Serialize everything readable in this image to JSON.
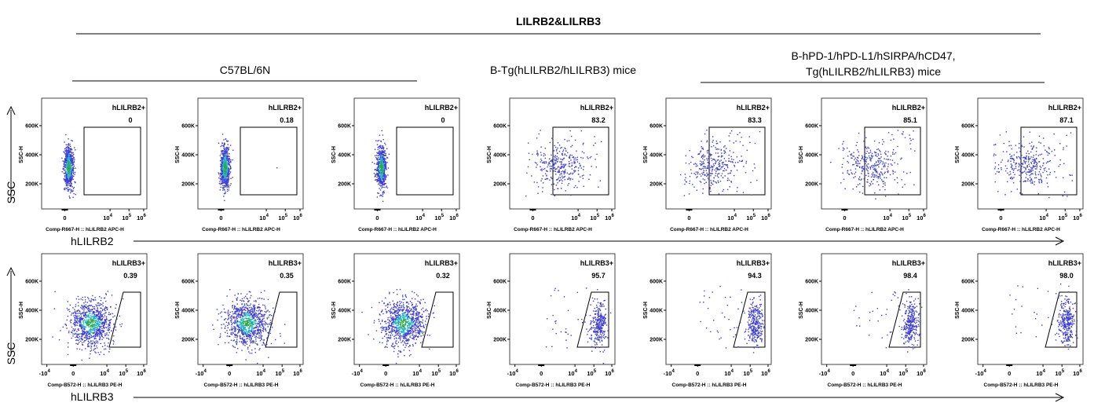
{
  "figure": {
    "title": "LILRB2&LILRB3",
    "groups": [
      {
        "label_lines": [
          "C57BL/6N"
        ]
      },
      {
        "label_lines": [
          "B-Tg(hLILRB2/hLILRB3) mice"
        ]
      },
      {
        "label_lines": [
          "B-hPD-1/hPD-L1/hSIRPA/hCD47,",
          "Tg(hLILRB2/hLILRB3) mice"
        ]
      }
    ],
    "rows": [
      {
        "yaxis_label": "SSC",
        "xaxis_label": "hLILRB2"
      },
      {
        "yaxis_label": "SSC",
        "xaxis_label": "hLILRB3"
      }
    ]
  },
  "chart_data": [
    {
      "type": "scatter",
      "row": "hLILRB2",
      "gate_label": "hLILRB2+",
      "xlabel": "Comp-R667-H :: hLILRB2 APC-H",
      "ylabel": "SSC-H",
      "yticks": [
        "200K",
        "400K",
        "600K"
      ],
      "xticks": [
        {
          "base": "0",
          "exp": ""
        },
        {
          "base": "10",
          "exp": "4"
        },
        {
          "base": "10",
          "exp": "5"
        },
        {
          "base": "10",
          "exp": "6"
        }
      ],
      "panels": [
        {
          "gate_value": "0",
          "group": 0
        },
        {
          "gate_value": "0.18",
          "group": 0
        },
        {
          "gate_value": "0",
          "group": 0
        },
        {
          "gate_value": "83.2",
          "group": 1
        },
        {
          "gate_value": "83.3",
          "group": 2
        },
        {
          "gate_value": "85.1",
          "group": 2
        },
        {
          "gate_value": "87.1",
          "group": 2
        }
      ]
    },
    {
      "type": "scatter",
      "row": "hLILRB3",
      "gate_label": "hLILRB3+",
      "xlabel": "Comp-B572-H :: hLILRB3 PE-H",
      "ylabel": "SSC-H",
      "yticks": [
        "200K",
        "400K",
        "600K"
      ],
      "xticks": [
        {
          "base": "-10",
          "exp": "4"
        },
        {
          "base": "0",
          "exp": ""
        },
        {
          "base": "10",
          "exp": "4"
        },
        {
          "base": "10",
          "exp": "5"
        },
        {
          "base": "10",
          "exp": "6"
        }
      ],
      "panels": [
        {
          "gate_value": "0.39",
          "group": 0
        },
        {
          "gate_value": "0.35",
          "group": 0
        },
        {
          "gate_value": "0.32",
          "group": 0
        },
        {
          "gate_value": "95.7",
          "group": 1
        },
        {
          "gate_value": "94.3",
          "group": 2
        },
        {
          "gate_value": "98.4",
          "group": 2
        },
        {
          "gate_value": "98.0",
          "group": 2
        }
      ]
    }
  ],
  "colors": {
    "dots": "#3b3bd6",
    "dense_mid": "#1fb8c4",
    "dense_core": "#2ea84a",
    "axis": "#000000"
  }
}
